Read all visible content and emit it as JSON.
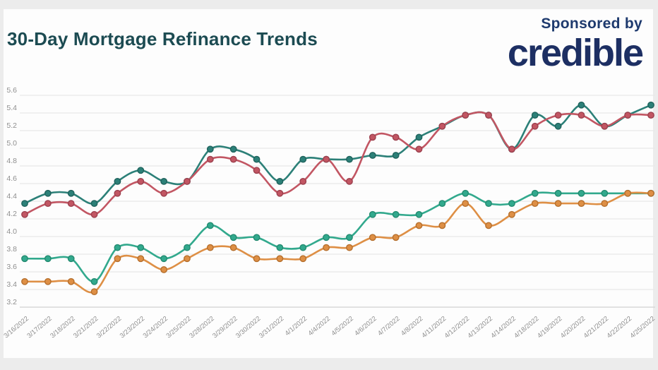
{
  "header": {
    "title": "30-Day Mortgage Refinance Trends",
    "sponsored_by": "Sponsored by",
    "sponsor_logo": "credible"
  },
  "colors": {
    "title_text": "#1c4b52",
    "sponsor_text": "#1e3a6e",
    "logo_text": "#1d2f63",
    "page_background": "#ececec",
    "card_background": "#fdfdfd",
    "gridline": "#e9e9e9",
    "gridline_bottom": "#d8d8d8",
    "axis_text": "#8f8f8f"
  },
  "chart_data": {
    "type": "line",
    "curve": "smooth",
    "grid": true,
    "legend": "none",
    "ylim": [
      3.2,
      5.6
    ],
    "ytick_step": 0.2,
    "x": [
      "3/16/2022",
      "3/17/2022",
      "3/18/2022",
      "3/21/2022",
      "3/22/2022",
      "3/23/2022",
      "3/24/2022",
      "3/25/2022",
      "3/28/2022",
      "3/29/2022",
      "3/30/2022",
      "3/31/2022",
      "4/1/2022",
      "4/4/2022",
      "4/5/2022",
      "4/6/2022",
      "4/7/2022",
      "4/8/2022",
      "4/11/2022",
      "4/12/2022",
      "4/13/2022",
      "4/14/2022",
      "4/18/2022",
      "4/19/2022",
      "4/20/2022",
      "4/21/2022",
      "4/22/2022",
      "4/25/2022"
    ],
    "series": [
      {
        "name": "teal-line",
        "color": "#2C8078",
        "dot_stroke": "#1f625c",
        "values": [
          4.375,
          4.49,
          4.49,
          4.375,
          4.625,
          4.75,
          4.625,
          4.625,
          4.99,
          4.99,
          4.875,
          4.625,
          4.875,
          4.875,
          4.875,
          4.92,
          4.92,
          5.125,
          5.25,
          5.375,
          5.375,
          4.99,
          5.375,
          5.25,
          5.49,
          5.25,
          5.375,
          5.49
        ]
      },
      {
        "name": "red-line",
        "color": "#C25663",
        "dot_stroke": "#9c404e",
        "values": [
          4.25,
          4.375,
          4.375,
          4.25,
          4.49,
          4.625,
          4.49,
          4.625,
          4.875,
          4.875,
          4.75,
          4.49,
          4.625,
          4.875,
          4.625,
          5.125,
          5.125,
          4.99,
          5.25,
          5.375,
          5.375,
          4.99,
          5.25,
          5.375,
          5.375,
          5.25,
          5.375,
          5.375
        ]
      },
      {
        "name": "green-line",
        "color": "#32A98D",
        "dot_stroke": "#238a70",
        "values": [
          3.75,
          3.75,
          3.75,
          3.49,
          3.875,
          3.875,
          3.75,
          3.875,
          4.125,
          3.99,
          3.99,
          3.875,
          3.875,
          3.99,
          3.99,
          4.25,
          4.25,
          4.25,
          4.375,
          4.49,
          4.375,
          4.375,
          4.49,
          4.49,
          4.49,
          4.49,
          4.49,
          4.49
        ]
      },
      {
        "name": "orange-line",
        "color": "#DE8F45",
        "dot_stroke": "#b56f2d",
        "values": [
          3.49,
          3.49,
          3.49,
          3.375,
          3.75,
          3.75,
          3.625,
          3.75,
          3.875,
          3.875,
          3.75,
          3.75,
          3.75,
          3.875,
          3.875,
          3.99,
          3.99,
          4.125,
          4.125,
          4.375,
          4.125,
          4.25,
          4.375,
          4.375,
          4.375,
          4.375,
          4.49,
          4.49
        ]
      }
    ]
  }
}
